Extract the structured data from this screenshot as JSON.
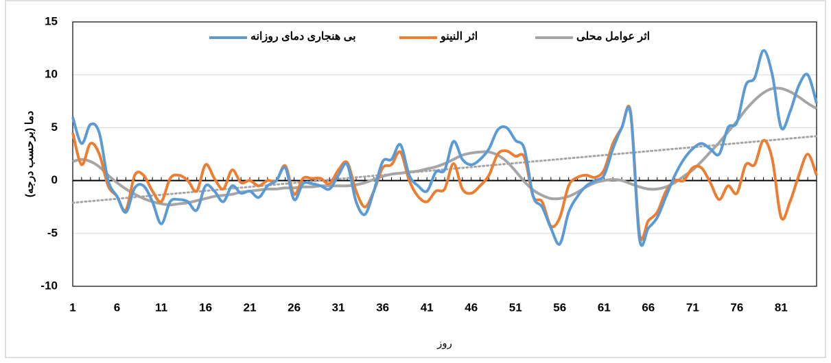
{
  "chart_data": {
    "type": "line",
    "y_label": "دما (برحسب درجه)",
    "x_label": "روز",
    "x": [
      1,
      2,
      3,
      4,
      5,
      6,
      7,
      8,
      9,
      10,
      11,
      12,
      13,
      14,
      15,
      16,
      17,
      18,
      19,
      20,
      21,
      22,
      23,
      24,
      25,
      26,
      27,
      28,
      29,
      30,
      31,
      32,
      33,
      34,
      35,
      36,
      37,
      38,
      39,
      40,
      41,
      42,
      43,
      44,
      45,
      46,
      47,
      48,
      49,
      50,
      51,
      52,
      53,
      54,
      55,
      56,
      57,
      58,
      59,
      60,
      61,
      62,
      63,
      64,
      65,
      66,
      67,
      68,
      69,
      70,
      71,
      72,
      73,
      74,
      75,
      76,
      77,
      78,
      79,
      80,
      81,
      82,
      83,
      84,
      85
    ],
    "xlim": [
      1,
      85
    ],
    "xticks": [
      1,
      6,
      11,
      16,
      21,
      26,
      31,
      36,
      41,
      46,
      51,
      56,
      61,
      66,
      71,
      76,
      81
    ],
    "ylim": [
      -10,
      15
    ],
    "yticks": [
      -10,
      -5,
      0,
      5,
      10,
      15
    ],
    "grid": true,
    "legend": "top",
    "series": [
      {
        "name": "بی هنجاری دمای روزانه",
        "color": "#5b9bd5",
        "values": [
          6,
          3.5,
          5.3,
          4.5,
          0,
          -1.5,
          -3,
          -0.7,
          -0.5,
          -2,
          -4.1,
          -2,
          -1.8,
          -2,
          -2.8,
          -0.5,
          -1,
          -2,
          -0.5,
          -1.2,
          -1,
          -1.6,
          -0.5,
          0,
          1.2,
          -1.8,
          -0.3,
          -0.3,
          -0.5,
          -0.8,
          0.5,
          1.5,
          -2,
          -3.2,
          -1,
          1.8,
          2,
          3.4,
          0.5,
          -0.5,
          -1,
          0.8,
          1,
          3.7,
          2,
          1.5,
          2,
          3,
          4.8,
          5,
          3.8,
          3,
          -1.5,
          -2.5,
          -4.5,
          -6,
          -3,
          -1.5,
          -0.5,
          0,
          0.5,
          3,
          5,
          6.3,
          -5.5,
          -4.5,
          -3.5,
          -1.5,
          0.5,
          2,
          3,
          3.5,
          3,
          2.5,
          5,
          5.5,
          9,
          9.7,
          12.3,
          10,
          5,
          6.5,
          9,
          10,
          7.3
        ]
      },
      {
        "name": "اثر النینو",
        "color": "#ed7d31",
        "values": [
          4.5,
          1.5,
          3.5,
          2.5,
          -0.5,
          -1.5,
          -2.8,
          0.5,
          0.5,
          -1,
          -2,
          0.2,
          0.5,
          0,
          -1,
          1.5,
          0.2,
          -0.8,
          1,
          -0.2,
          0,
          -0.5,
          0,
          0,
          1.4,
          -1.3,
          0.2,
          0.2,
          0.2,
          -0.3,
          1,
          1.7,
          -1,
          -2.5,
          -1,
          1.2,
          1.5,
          2.7,
          0,
          -1.5,
          -2,
          -1,
          -0.8,
          1.6,
          -0.8,
          -1.2,
          -0.5,
          0.5,
          2.5,
          2.8,
          2.3,
          2.2,
          -1.5,
          -2,
          -4.3,
          -3.5,
          -0.5,
          0.3,
          0.5,
          0.3,
          1,
          3.5,
          5,
          6.5,
          -5,
          -3.8,
          -3,
          -1,
          0,
          0,
          1.2,
          1.2,
          -0.2,
          -1.8,
          -0.5,
          -1.2,
          1.5,
          1.5,
          3.8,
          2,
          -3.5,
          -2,
          0.5,
          2.5,
          0.5
        ]
      },
      {
        "name": "اثر عوامل محلی",
        "color": "#a5a5a5",
        "values": [
          1.8,
          2,
          1.8,
          1.3,
          0.5,
          -0.2,
          -0.8,
          -1.3,
          -1.7,
          -2,
          -2.2,
          -2.3,
          -2.2,
          -2.1,
          -1.9,
          -1.7,
          -1.5,
          -1.4,
          -1.3,
          -1.1,
          -1,
          -0.9,
          -0.8,
          -0.8,
          -0.7,
          -0.7,
          -0.6,
          -0.6,
          -0.5,
          -0.5,
          -0.5,
          -0.5,
          -0.4,
          -0.2,
          0.1,
          0.4,
          0.6,
          0.7,
          0.8,
          0.9,
          1.1,
          1.3,
          1.6,
          2,
          2.4,
          2.6,
          2.7,
          2.7,
          2.4,
          1.8,
          0.9,
          -0.1,
          -0.9,
          -1.4,
          -1.7,
          -1.7,
          -1.5,
          -1.1,
          -0.6,
          -0.2,
          0,
          0.1,
          0,
          -0.3,
          -0.6,
          -0.8,
          -0.8,
          -0.6,
          -0.2,
          0.4,
          1,
          1.8,
          2.7,
          3.6,
          4.6,
          5.6,
          6.7,
          7.6,
          8.3,
          8.7,
          8.7,
          8.4,
          7.9,
          7.3,
          6.8
        ]
      }
    ],
    "trendline": {
      "x": [
        1,
        85
      ],
      "values": [
        -2.1,
        4.2
      ],
      "color": "#a5a5a5"
    }
  }
}
